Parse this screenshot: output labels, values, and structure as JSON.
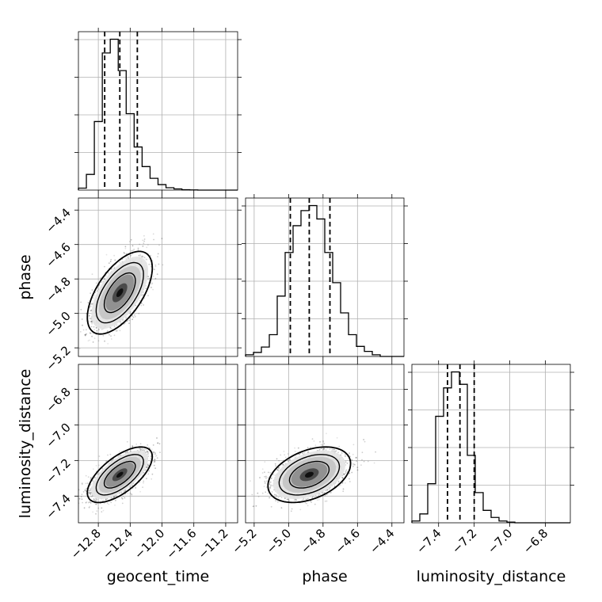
{
  "chart_data": {
    "type": "corner",
    "parameters": [
      "geocent_time",
      "phase",
      "luminosity_distance"
    ],
    "axes": {
      "geocent_time": {
        "label": "geocent_time",
        "range": [
          -13.05,
          -11.05
        ],
        "ticks": [
          -12.8,
          -12.4,
          -12.0,
          -11.6,
          -11.2
        ],
        "tick_labels": [
          "−12.8",
          "−12.4",
          "−12.0",
          "−11.6",
          "−11.2"
        ]
      },
      "phase": {
        "label": "phase",
        "range": [
          -5.25,
          -4.33
        ],
        "ticks": [
          -5.2,
          -5.0,
          -4.8,
          -4.6,
          -4.4
        ],
        "tick_labels": [
          "−5.2",
          "−5.0",
          "−4.8",
          "−4.6",
          "−4.4"
        ]
      },
      "luminosity_distance": {
        "label": "luminosity_distance",
        "range": [
          -7.55,
          -6.66
        ],
        "ticks": [
          -7.4,
          -7.2,
          -7.0,
          -6.8
        ],
        "tick_labels": [
          "−7.4",
          "−7.2",
          "−7.0",
          "−6.8"
        ]
      }
    },
    "marginals": {
      "geocent_time": {
        "bin_edges": [
          -13.05,
          -12.95,
          -12.85,
          -12.75,
          -12.65,
          -12.55,
          -12.45,
          -12.35,
          -12.25,
          -12.15,
          -12.05,
          -11.95,
          -11.85,
          -11.75,
          -11.65,
          -11.55,
          -11.45,
          -11.35,
          -11.25,
          -11.15,
          -11.05
        ],
        "counts": [
          5,
          40,
          175,
          350,
          385,
          305,
          195,
          110,
          60,
          30,
          14,
          6,
          3,
          1,
          0.5,
          0,
          0,
          0,
          0,
          0
        ],
        "quantiles": [
          -12.72,
          -12.53,
          -12.31
        ]
      },
      "phase": {
        "bin_edges": [
          -5.25,
          -5.204,
          -5.158,
          -5.112,
          -5.066,
          -5.02,
          -4.974,
          -4.928,
          -4.882,
          -4.836,
          -4.79,
          -4.744,
          -4.698,
          -4.652,
          -4.606,
          -4.56,
          -4.514,
          -4.468,
          -4.422,
          -4.376,
          -4.33
        ],
        "counts": [
          5,
          12,
          28,
          65,
          180,
          310,
          390,
          435,
          450,
          410,
          310,
          220,
          130,
          65,
          30,
          15,
          5,
          0,
          0,
          0
        ],
        "quantiles": [
          -4.99,
          -4.88,
          -4.76
        ]
      },
      "luminosity_distance": {
        "bin_edges": [
          -7.55,
          -7.5055,
          -7.461,
          -7.4165,
          -7.372,
          -7.3275,
          -7.283,
          -7.2385,
          -7.194,
          -7.1495,
          -7.105,
          -7.0605,
          -7.016,
          -6.9715,
          -6.927,
          -6.8825,
          -6.838,
          -6.7935,
          -6.749,
          -6.7045,
          -6.66
        ],
        "counts": [
          5,
          25,
          110,
          300,
          380,
          425,
          390,
          190,
          85,
          35,
          15,
          5,
          2,
          0,
          0,
          0,
          0,
          0,
          0,
          0
        ],
        "quantiles": [
          -7.35,
          -7.28,
          -7.2
        ]
      }
    },
    "joint": [
      {
        "x": "geocent_time",
        "y": "phase",
        "mean": [
          -12.53,
          -4.88
        ],
        "sd": [
          0.17,
          0.1
        ],
        "rho": 0.6
      },
      {
        "x": "geocent_time",
        "y": "luminosity_distance",
        "mean": [
          -12.53,
          -7.28
        ],
        "sd": [
          0.17,
          0.065
        ],
        "rho": 0.65
      },
      {
        "x": "phase",
        "y": "luminosity_distance",
        "mean": [
          -4.88,
          -7.28
        ],
        "sd": [
          0.1,
          0.065
        ],
        "rho": 0.4
      }
    ]
  }
}
